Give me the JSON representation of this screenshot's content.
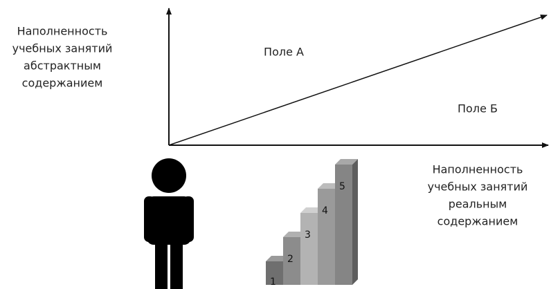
{
  "y_axis_label": [
    "Наполненность",
    "учебных занятий",
    "абстрактным",
    "содержанием"
  ],
  "x_axis_label": [
    "Наполненность",
    "учебных занятий",
    "реальным",
    "содержанием"
  ],
  "fields": {
    "a": "Поле А",
    "b": "Поле Б"
  },
  "steps": [
    "1",
    "2",
    "3",
    "4",
    "5"
  ]
}
